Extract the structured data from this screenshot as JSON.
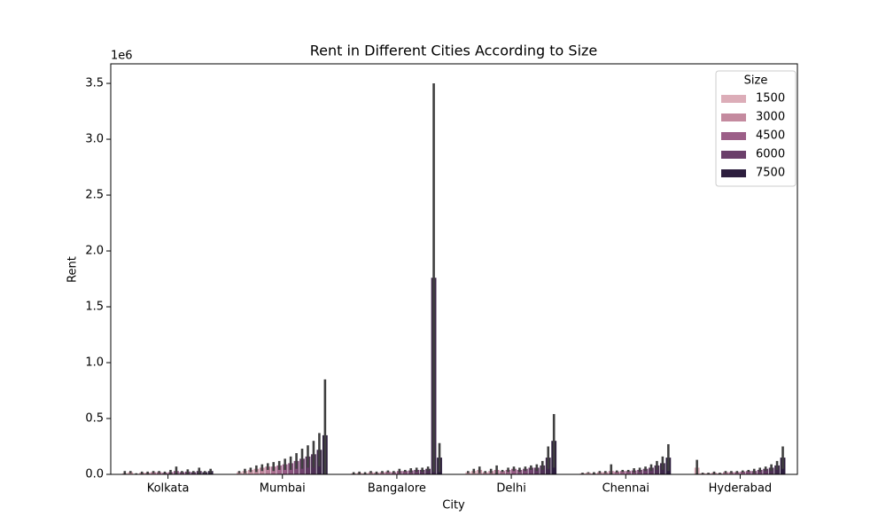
{
  "chart_data": {
    "type": "bar",
    "title": "Rent in Different Cities According to Size",
    "x_label": "City",
    "y_label": "Rent",
    "y_offset_label": "1e6",
    "categories": [
      "Kolkata",
      "Mumbai",
      "Bangalore",
      "Delhi",
      "Chennai",
      "Hyderabad"
    ],
    "groups": [
      {
        "values": [
          0.01,
          0.02,
          0.005,
          0.015,
          0.015,
          0.02,
          0.02,
          0.015,
          0.02,
          0.03,
          0.02,
          0.025,
          0.02,
          0.03,
          0.02,
          0.03
        ],
        "errors": [
          0.02,
          0.01,
          0.005,
          0.01,
          0.01,
          0.01,
          0.01,
          0.01,
          0.02,
          0.04,
          0.01,
          0.02,
          0.01,
          0.03,
          0.01,
          0.02
        ]
      },
      {
        "values": [
          0.02,
          0.03,
          0.04,
          0.05,
          0.06,
          0.07,
          0.07,
          0.08,
          0.09,
          0.1,
          0.12,
          0.14,
          0.16,
          0.18,
          0.22,
          0.35
        ],
        "errors": [
          0.01,
          0.02,
          0.02,
          0.03,
          0.03,
          0.03,
          0.04,
          0.04,
          0.05,
          0.06,
          0.07,
          0.09,
          0.1,
          0.12,
          0.15,
          0.5
        ]
      },
      {
        "values": [
          0.01,
          0.015,
          0.01,
          0.02,
          0.015,
          0.02,
          0.025,
          0.02,
          0.03,
          0.03,
          0.035,
          0.04,
          0.04,
          0.05,
          1.76,
          0.15
        ],
        "errors": [
          0.01,
          0.01,
          0.01,
          0.01,
          0.01,
          0.01,
          0.01,
          0.01,
          0.02,
          0.01,
          0.02,
          0.02,
          0.02,
          0.02,
          1.74,
          0.13
        ]
      },
      {
        "values": [
          0.02,
          0.03,
          0.04,
          0.02,
          0.03,
          0.04,
          0.03,
          0.04,
          0.05,
          0.04,
          0.05,
          0.06,
          0.06,
          0.08,
          0.15,
          0.3
        ],
        "errors": [
          0.01,
          0.02,
          0.03,
          0.01,
          0.02,
          0.04,
          0.01,
          0.02,
          0.02,
          0.02,
          0.02,
          0.02,
          0.03,
          0.04,
          0.1,
          0.24
        ]
      },
      {
        "values": [
          0.01,
          0.015,
          0.01,
          0.02,
          0.02,
          0.03,
          0.025,
          0.03,
          0.03,
          0.035,
          0.04,
          0.05,
          0.06,
          0.08,
          0.1,
          0.15
        ],
        "errors": [
          0.005,
          0.005,
          0.01,
          0.01,
          0.01,
          0.06,
          0.01,
          0.01,
          0.01,
          0.02,
          0.02,
          0.02,
          0.03,
          0.04,
          0.06,
          0.12
        ]
      },
      {
        "values": [
          0.06,
          0.01,
          0.01,
          0.015,
          0.01,
          0.02,
          0.02,
          0.02,
          0.025,
          0.03,
          0.03,
          0.04,
          0.05,
          0.06,
          0.08,
          0.15
        ],
        "errors": [
          0.07,
          0.005,
          0.005,
          0.01,
          0.005,
          0.01,
          0.01,
          0.01,
          0.01,
          0.01,
          0.02,
          0.02,
          0.02,
          0.03,
          0.04,
          0.1
        ]
      }
    ],
    "palette": [
      "#dcadb8",
      "#c48a9f",
      "#9c5f88",
      "#6b3f6a",
      "#2d1e3e"
    ],
    "error_color": "#3f3f3f",
    "ylim": [
      0,
      3.675
    ],
    "yticks": [
      {
        "value": 0,
        "label": "0.0"
      },
      0.5,
      {
        "value": 1,
        "label": "1.0"
      },
      1.5,
      {
        "value": 2,
        "label": "2.0"
      },
      2.5,
      {
        "value": 3,
        "label": "3.0"
      },
      3.5
    ],
    "legend": {
      "title": "Size",
      "position": "upper right",
      "entries": [
        {
          "label": "1500",
          "color": "#dcadb8"
        },
        {
          "label": "3000",
          "color": "#c48a9f"
        },
        {
          "label": "4500",
          "color": "#9c5f88"
        },
        {
          "label": "6000",
          "color": "#6b3f6a"
        },
        {
          "label": "7500",
          "color": "#2d1e3e"
        }
      ]
    }
  }
}
